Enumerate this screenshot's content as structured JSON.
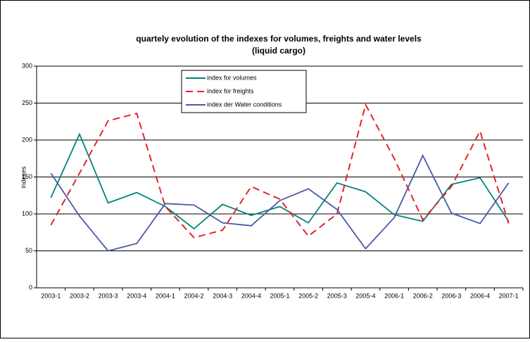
{
  "chart_data": {
    "type": "line",
    "title": "quartely evolution of the indexes for volumes, freights and water levels",
    "subtitle": "(liquid cargo)",
    "y_label": "indexes",
    "categories": [
      "2003-1",
      "2003-2",
      "2003-3",
      "2003-4",
      "2004-1",
      "2004-2",
      "2004-3",
      "2004-4",
      "2005-1",
      "2005-2",
      "2005-3",
      "2005-4",
      "2006-1",
      "2006-2",
      "2006-3",
      "2006-4",
      "2007-1"
    ],
    "series": [
      {
        "name": "index for volumes",
        "color": "#00837a",
        "dash": false,
        "values": [
          122,
          208,
          115,
          129,
          110,
          80,
          113,
          98,
          110,
          88,
          142,
          130,
          99,
          90,
          140,
          149,
          90
        ]
      },
      {
        "name": "index for freights",
        "color": "#e3242b",
        "dash": true,
        "values": [
          85,
          155,
          226,
          236,
          110,
          68,
          78,
          137,
          120,
          70,
          100,
          248,
          175,
          92,
          137,
          212,
          87
        ]
      },
      {
        "name": "index der Water conditions",
        "color": "#4a58a8",
        "dash": false,
        "values": [
          155,
          97,
          50,
          60,
          114,
          112,
          88,
          84,
          118,
          134,
          106,
          53,
          95,
          179,
          101,
          87,
          142
        ]
      }
    ],
    "ylim": [
      0,
      300
    ],
    "yticks": [
      0,
      50,
      100,
      150,
      200,
      250,
      300
    ],
    "grid": true
  }
}
